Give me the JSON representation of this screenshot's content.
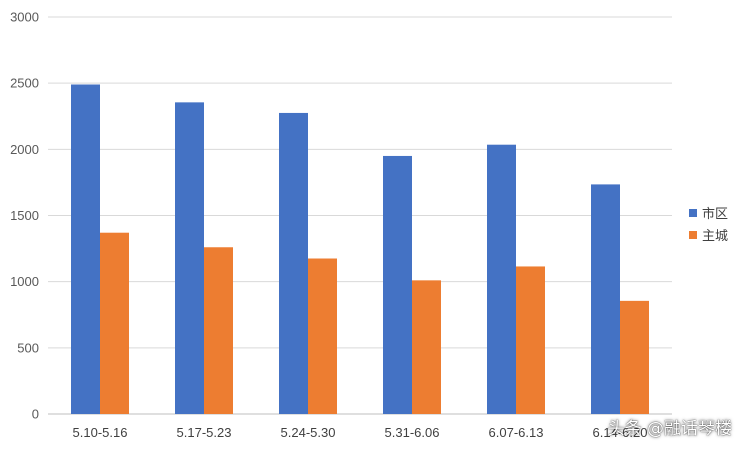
{
  "chart_data": {
    "type": "bar",
    "categories": [
      "5.10-5.16",
      "5.17-5.23",
      "5.24-5.30",
      "5.31-6.06",
      "6.07-6.13",
      "6.14-6.20"
    ],
    "series": [
      {
        "name": "市区",
        "values": [
          2490,
          2355,
          2275,
          1950,
          2035,
          1735
        ],
        "color": "#4472C4"
      },
      {
        "name": "主城",
        "values": [
          1370,
          1260,
          1175,
          1010,
          1115,
          855
        ],
        "color": "#ED7D31"
      }
    ],
    "yticks": [
      0,
      500,
      1000,
      1500,
      2000,
      2500,
      3000
    ],
    "ylim": [
      0,
      3000
    ],
    "grid": true,
    "legend_position": "right",
    "title": "",
    "xlabel": "",
    "ylabel": ""
  },
  "watermark": "头条 @融话琴楼"
}
